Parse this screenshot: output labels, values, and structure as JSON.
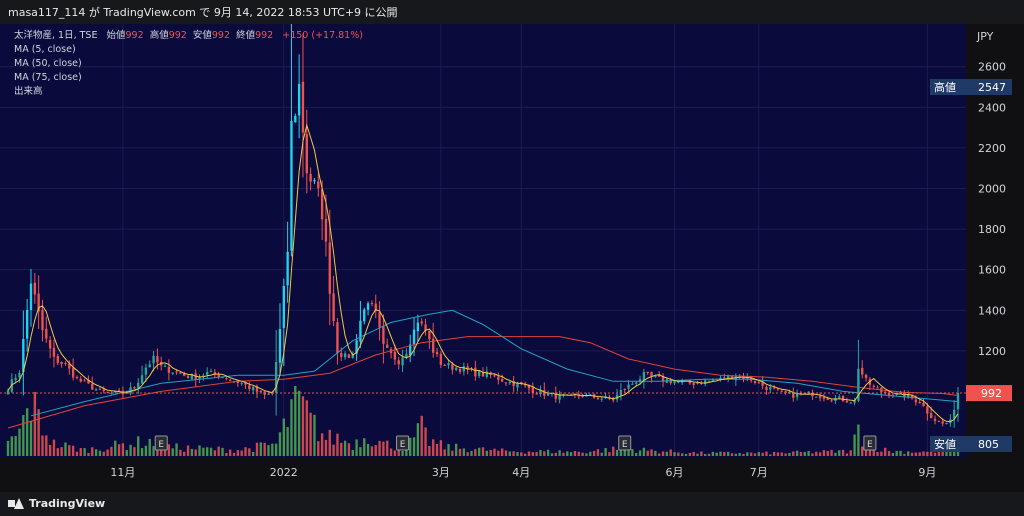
{
  "header": {
    "attribution": "masa117_114 が TradingView.com で 9月 14, 2022 18:53 UTC+9 に公開"
  },
  "legend": {
    "symbol": "太洋物産, 1日, TSE",
    "open_label": "始値",
    "open_value": "992",
    "high_label": "高値",
    "high_value": "992",
    "low_label": "安値",
    "low_value": "992",
    "close_label": "終値",
    "close_value": "992",
    "change": "+150 (+17.81%)",
    "indicators": [
      "MA (5, close)",
      "MA (50, close)",
      "MA (75, close)",
      "出来高"
    ]
  },
  "price_axis": {
    "currency": "JPY",
    "ticks": [
      1200,
      1400,
      1600,
      1800,
      2000,
      2200,
      2400,
      2600
    ],
    "high_label": "高値",
    "high_value": "2547",
    "low_label": "安値",
    "low_value": "805",
    "last_value": "992"
  },
  "time_axis": {
    "labels": [
      {
        "text": "11月",
        "t": 30
      },
      {
        "text": "2022",
        "t": 72
      },
      {
        "text": "3月",
        "t": 113
      },
      {
        "text": "4月",
        "t": 134
      },
      {
        "text": "6月",
        "t": 174
      },
      {
        "text": "7月",
        "t": 196
      },
      {
        "text": "9月",
        "t": 240
      }
    ]
  },
  "earnings_markers": [
    {
      "label": "E",
      "t": 40
    },
    {
      "label": "E",
      "t": 103
    },
    {
      "label": "E",
      "t": 161
    },
    {
      "label": "E",
      "t": 225
    }
  ],
  "footer": {
    "brand": "TradingView"
  },
  "colors": {
    "up": "#26a69a",
    "up_bright": "#22d3ee",
    "down": "#ef5350",
    "ma5": "#f2c744",
    "ma50": "#1fa3c6",
    "ma75": "#e0433a",
    "background": "#0a0a3c",
    "axis": "#101012",
    "vol_up": "#4caf50",
    "vol_down": "#ef5350"
  },
  "chart_data": {
    "type": "candlestick",
    "title": "太洋物産, 1日, TSE",
    "ylabel": "JPY",
    "ylim": [
      800,
      2700
    ],
    "anchors": [
      [
        0,
        1020
      ],
      [
        3,
        1100
      ],
      [
        6,
        1550
      ],
      [
        9,
        1300
      ],
      [
        12,
        1160
      ],
      [
        15,
        1130
      ],
      [
        18,
        1060
      ],
      [
        21,
        1030
      ],
      [
        24,
        1000
      ],
      [
        27,
        990
      ],
      [
        30,
        990
      ],
      [
        33,
        1020
      ],
      [
        36,
        1120
      ],
      [
        38,
        1160
      ],
      [
        40,
        1120
      ],
      [
        43,
        1100
      ],
      [
        46,
        1080
      ],
      [
        49,
        1070
      ],
      [
        52,
        1090
      ],
      [
        55,
        1080
      ],
      [
        58,
        1060
      ],
      [
        61,
        1040
      ],
      [
        64,
        1010
      ],
      [
        67,
        980
      ],
      [
        69,
        990
      ],
      [
        71,
        1300
      ],
      [
        73,
        1700
      ],
      [
        74,
        2300
      ],
      [
        76,
        2500
      ],
      [
        78,
        2100
      ],
      [
        80,
        2000
      ],
      [
        82,
        1900
      ],
      [
        84,
        1500
      ],
      [
        86,
        1200
      ],
      [
        88,
        1170
      ],
      [
        90,
        1180
      ],
      [
        92,
        1350
      ],
      [
        94,
        1450
      ],
      [
        96,
        1380
      ],
      [
        98,
        1220
      ],
      [
        100,
        1180
      ],
      [
        102,
        1150
      ],
      [
        104,
        1200
      ],
      [
        107,
        1350
      ],
      [
        109,
        1300
      ],
      [
        111,
        1200
      ],
      [
        113,
        1140
      ],
      [
        116,
        1120
      ],
      [
        119,
        1110
      ],
      [
        122,
        1090
      ],
      [
        126,
        1080
      ],
      [
        130,
        1050
      ],
      [
        134,
        1030
      ],
      [
        138,
        1000
      ],
      [
        142,
        980
      ],
      [
        146,
        970
      ],
      [
        150,
        980
      ],
      [
        154,
        970
      ],
      [
        158,
        960
      ],
      [
        160,
        1000
      ],
      [
        163,
        1040
      ],
      [
        166,
        1080
      ],
      [
        170,
        1060
      ],
      [
        174,
        1050
      ],
      [
        178,
        1040
      ],
      [
        182,
        1050
      ],
      [
        186,
        1060
      ],
      [
        190,
        1080
      ],
      [
        194,
        1060
      ],
      [
        198,
        1020
      ],
      [
        202,
        990
      ],
      [
        206,
        980
      ],
      [
        210,
        990
      ],
      [
        214,
        970
      ],
      [
        218,
        960
      ],
      [
        221,
        950
      ],
      [
        222,
        1120
      ],
      [
        224,
        1050
      ],
      [
        226,
        1020
      ],
      [
        228,
        1000
      ],
      [
        230,
        990
      ],
      [
        234,
        980
      ],
      [
        238,
        950
      ],
      [
        240,
        900
      ],
      [
        242,
        860
      ],
      [
        244,
        840
      ],
      [
        246,
        850
      ],
      [
        248,
        992
      ]
    ],
    "ma50_points": [
      [
        6,
        880
      ],
      [
        20,
        950
      ],
      [
        40,
        1040
      ],
      [
        60,
        1080
      ],
      [
        72,
        1080
      ],
      [
        80,
        1100
      ],
      [
        90,
        1250
      ],
      [
        100,
        1340
      ],
      [
        110,
        1380
      ],
      [
        116,
        1400
      ],
      [
        124,
        1330
      ],
      [
        134,
        1210
      ],
      [
        146,
        1110
      ],
      [
        158,
        1050
      ],
      [
        170,
        1050
      ],
      [
        182,
        1060
      ],
      [
        194,
        1060
      ],
      [
        206,
        1040
      ],
      [
        218,
        1000
      ],
      [
        230,
        980
      ],
      [
        242,
        960
      ],
      [
        248,
        950
      ]
    ],
    "ma75_points": [
      [
        0,
        820
      ],
      [
        20,
        930
      ],
      [
        40,
        1000
      ],
      [
        60,
        1050
      ],
      [
        72,
        1060
      ],
      [
        84,
        1090
      ],
      [
        96,
        1180
      ],
      [
        108,
        1240
      ],
      [
        120,
        1270
      ],
      [
        132,
        1270
      ],
      [
        144,
        1270
      ],
      [
        152,
        1240
      ],
      [
        162,
        1160
      ],
      [
        174,
        1110
      ],
      [
        186,
        1080
      ],
      [
        198,
        1070
      ],
      [
        210,
        1050
      ],
      [
        222,
        1020
      ],
      [
        234,
        995
      ],
      [
        244,
        990
      ],
      [
        248,
        980
      ]
    ],
    "volume_levels": [
      [
        0,
        0.2
      ],
      [
        3,
        0.4
      ],
      [
        6,
        0.9
      ],
      [
        9,
        0.5
      ],
      [
        12,
        0.2
      ],
      [
        20,
        0.1
      ],
      [
        37,
        0.25
      ],
      [
        40,
        0.15
      ],
      [
        60,
        0.1
      ],
      [
        70,
        0.2
      ],
      [
        73,
        0.6
      ],
      [
        75,
        1.0
      ],
      [
        77,
        0.8
      ],
      [
        80,
        0.5
      ],
      [
        83,
        0.3
      ],
      [
        86,
        0.3
      ],
      [
        90,
        0.2
      ],
      [
        94,
        0.35
      ],
      [
        98,
        0.2
      ],
      [
        104,
        0.15
      ],
      [
        108,
        0.45
      ],
      [
        110,
        0.25
      ],
      [
        114,
        0.15
      ],
      [
        130,
        0.08
      ],
      [
        150,
        0.07
      ],
      [
        160,
        0.12
      ],
      [
        165,
        0.1
      ],
      [
        180,
        0.05
      ],
      [
        200,
        0.05
      ],
      [
        220,
        0.08
      ],
      [
        222,
        0.45
      ],
      [
        224,
        0.2
      ],
      [
        230,
        0.08
      ],
      [
        240,
        0.07
      ],
      [
        244,
        0.1
      ],
      [
        248,
        0.2
      ]
    ],
    "n_bars": 249
  }
}
